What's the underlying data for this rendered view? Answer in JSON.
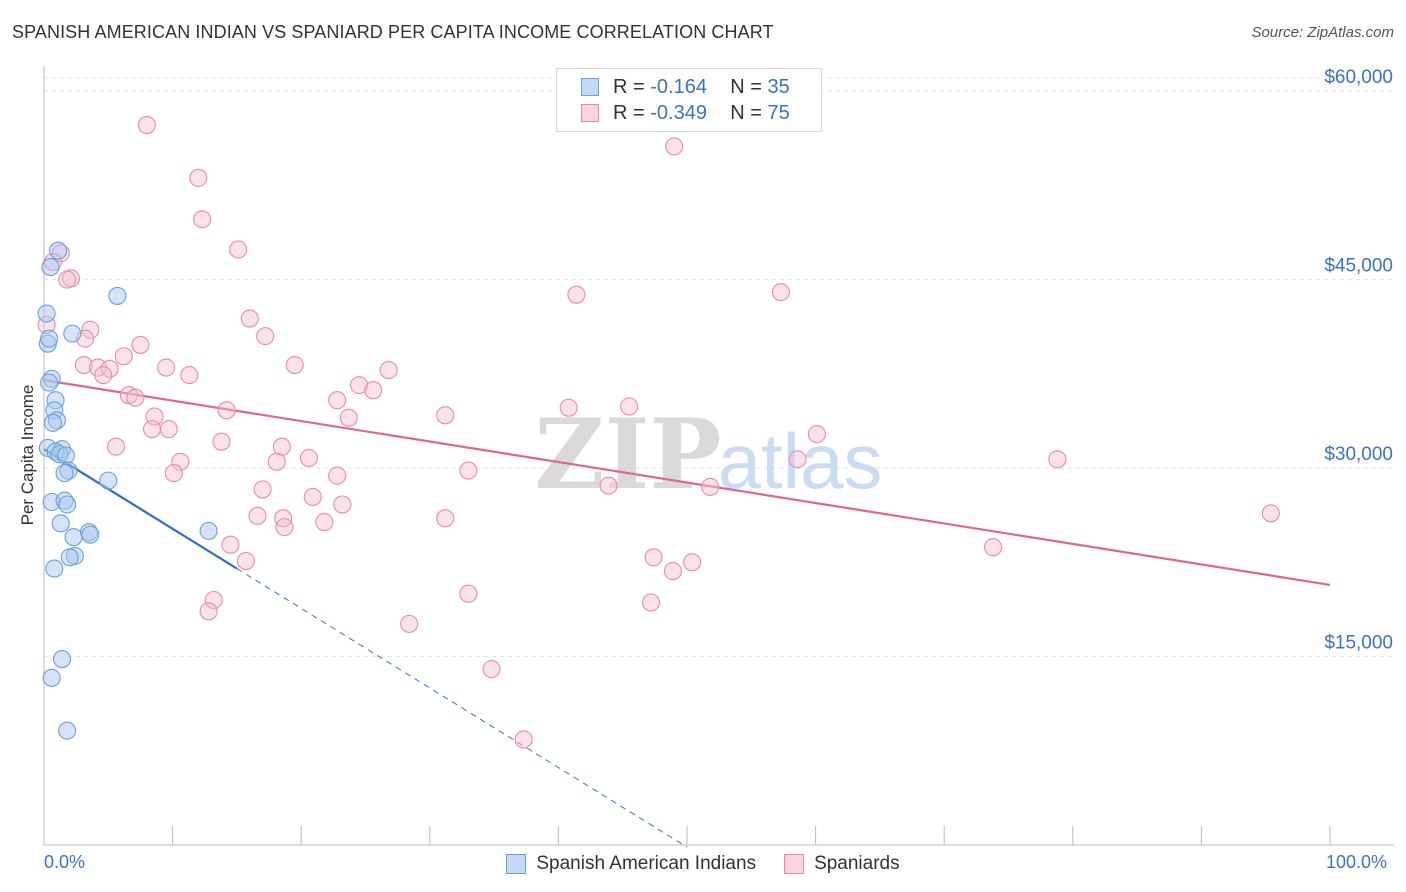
{
  "title": "SPANISH AMERICAN INDIAN VS SPANIARD PER CAPITA INCOME CORRELATION CHART",
  "source": "Source: ZipAtlas.com",
  "watermark": {
    "zip": "ZIP",
    "atlas": "atlas"
  },
  "legend": {
    "rows": [
      {
        "r_label": "R =",
        "r_value": "-0.164",
        "n_label": "N =",
        "n_value": "35",
        "color": "#a9c8f0",
        "border": "#6a9fe0"
      },
      {
        "r_label": "R =",
        "r_value": "-0.349",
        "n_label": "N =",
        "n_value": "75",
        "color": "#f7bfd0",
        "border": "#ea8aa8"
      }
    ]
  },
  "chart_data": {
    "type": "scatter",
    "title": "SPANISH AMERICAN INDIAN VS SPANIARD PER CAPITA INCOME CORRELATION CHART",
    "xlabel": "",
    "ylabel": "Per Capita Income",
    "xlim": [
      0,
      100
    ],
    "ylim": [
      0,
      62000
    ],
    "x_tick_labels": [
      "0.0%",
      "100.0%"
    ],
    "y_ticks": [
      15000,
      30000,
      45000,
      60000
    ],
    "y_tick_labels": [
      "$15,000",
      "$30,000",
      "$45,000",
      "$60,000"
    ],
    "grid": true,
    "legend_position": "bottom",
    "series": [
      {
        "name": "Spanish American Indians",
        "color": "#6a9fe0",
        "fill": "#a9c8f0",
        "points": [
          [
            1.1,
            47.3
          ],
          [
            0.5,
            46.0
          ],
          [
            5.7,
            43.7
          ],
          [
            0.2,
            42.3
          ],
          [
            2.2,
            40.7
          ],
          [
            0.3,
            39.9
          ],
          [
            0.6,
            37.1
          ],
          [
            0.4,
            36.8
          ],
          [
            0.9,
            35.4
          ],
          [
            0.8,
            34.6
          ],
          [
            1.0,
            33.8
          ],
          [
            0.7,
            33.6
          ],
          [
            0.3,
            31.6
          ],
          [
            1.4,
            31.5
          ],
          [
            0.9,
            31.3
          ],
          [
            1.2,
            31.1
          ],
          [
            1.7,
            31.0
          ],
          [
            1.9,
            29.8
          ],
          [
            1.6,
            29.6
          ],
          [
            5.0,
            29.0
          ],
          [
            0.6,
            27.3
          ],
          [
            1.6,
            27.4
          ],
          [
            1.8,
            27.1
          ],
          [
            1.3,
            25.6
          ],
          [
            12.8,
            25.0
          ],
          [
            3.5,
            24.9
          ],
          [
            3.6,
            24.7
          ],
          [
            2.3,
            24.5
          ],
          [
            2.4,
            23.0
          ],
          [
            2.0,
            22.9
          ],
          [
            0.8,
            22.0
          ],
          [
            1.4,
            14.8
          ],
          [
            0.6,
            13.3
          ],
          [
            1.8,
            9.1
          ],
          [
            0.4,
            40.3
          ]
        ]
      },
      {
        "name": "Spaniards",
        "color": "#ea8aa8",
        "fill": "#f7bfd0",
        "points": [
          [
            8.0,
            57.3
          ],
          [
            49.0,
            55.6
          ],
          [
            12.0,
            53.1
          ],
          [
            12.3,
            49.8
          ],
          [
            1.3,
            47.1
          ],
          [
            0.7,
            46.4
          ],
          [
            15.1,
            47.4
          ],
          [
            2.1,
            45.1
          ],
          [
            1.8,
            45.0
          ],
          [
            41.4,
            43.8
          ],
          [
            57.3,
            44.0
          ],
          [
            16.0,
            41.9
          ],
          [
            0.2,
            41.4
          ],
          [
            3.6,
            41.0
          ],
          [
            17.2,
            40.5
          ],
          [
            3.2,
            40.3
          ],
          [
            7.5,
            39.8
          ],
          [
            6.2,
            38.9
          ],
          [
            3.1,
            38.2
          ],
          [
            4.2,
            38.0
          ],
          [
            5.1,
            37.9
          ],
          [
            9.5,
            38.0
          ],
          [
            19.5,
            38.2
          ],
          [
            26.8,
            37.8
          ],
          [
            11.3,
            37.4
          ],
          [
            4.6,
            37.4
          ],
          [
            24.5,
            36.6
          ],
          [
            25.6,
            36.2
          ],
          [
            6.6,
            35.8
          ],
          [
            7.1,
            35.6
          ],
          [
            22.8,
            35.4
          ],
          [
            45.5,
            34.9
          ],
          [
            40.8,
            34.8
          ],
          [
            14.2,
            34.6
          ],
          [
            8.6,
            34.1
          ],
          [
            31.2,
            34.2
          ],
          [
            23.7,
            34.0
          ],
          [
            9.7,
            33.1
          ],
          [
            8.4,
            33.1
          ],
          [
            60.1,
            32.7
          ],
          [
            13.8,
            32.1
          ],
          [
            5.6,
            31.7
          ],
          [
            18.5,
            31.7
          ],
          [
            20.6,
            30.8
          ],
          [
            58.6,
            30.7
          ],
          [
            78.8,
            30.7
          ],
          [
            10.6,
            30.5
          ],
          [
            18.1,
            30.5
          ],
          [
            33.0,
            29.8
          ],
          [
            10.1,
            29.6
          ],
          [
            22.8,
            29.4
          ],
          [
            43.9,
            28.6
          ],
          [
            51.8,
            28.5
          ],
          [
            17.0,
            28.3
          ],
          [
            20.9,
            27.7
          ],
          [
            23.2,
            27.1
          ],
          [
            16.6,
            26.2
          ],
          [
            18.6,
            26.0
          ],
          [
            31.2,
            26.0
          ],
          [
            21.8,
            25.7
          ],
          [
            18.7,
            25.3
          ],
          [
            95.4,
            26.4
          ],
          [
            73.8,
            23.7
          ],
          [
            14.5,
            23.9
          ],
          [
            47.4,
            22.9
          ],
          [
            50.4,
            22.5
          ],
          [
            15.7,
            22.6
          ],
          [
            48.9,
            21.8
          ],
          [
            33.0,
            20.0
          ],
          [
            13.2,
            19.5
          ],
          [
            47.2,
            19.3
          ],
          [
            12.8,
            18.6
          ],
          [
            28.4,
            17.6
          ],
          [
            34.8,
            14.0
          ],
          [
            37.3,
            8.4
          ]
        ]
      }
    ],
    "trend_lines": [
      {
        "series": "Spanish American Indians",
        "x_start": 0.0,
        "y_start": 31.5,
        "x_end": 15.0,
        "y_end": 22.0,
        "dashed_extension_to_x": 50.0
      },
      {
        "series": "Spaniards",
        "x_start": 0.0,
        "y_start": 37.0,
        "x_end": 100.0,
        "y_end": 20.7
      }
    ],
    "y_unit_note": "point y values are in thousands of dollars"
  }
}
